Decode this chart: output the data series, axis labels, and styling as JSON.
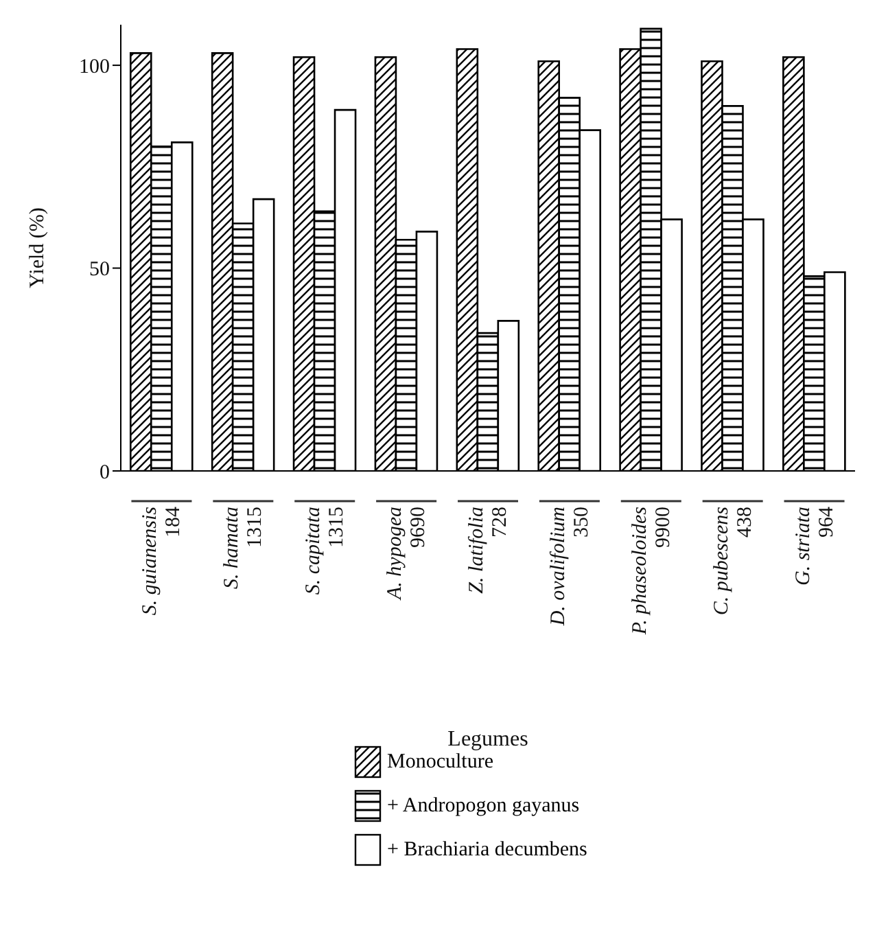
{
  "chart_data": {
    "type": "bar",
    "xlabel": "Legumes",
    "ylabel": "Yield (%)",
    "categories": [
      "S. guianensis\n184",
      "S. hamata\n1315",
      "S. capitata\n1315",
      "A. hypogea\n9690",
      "Z. latifolia\n728",
      "D. ovalifolium\n350",
      "P. phaseoloides\n9900",
      "C. pubescens\n438",
      "G. striata\n964"
    ],
    "series": [
      {
        "name": "Monoculture",
        "color": "#000000",
        "values": [
          103,
          103,
          102,
          102,
          104,
          101,
          104,
          101,
          102
        ]
      },
      {
        "name": "+ Andropogon gayanus",
        "color": "#000000",
        "values": [
          80,
          61,
          64,
          57,
          34,
          92,
          109,
          90,
          48
        ]
      },
      {
        "name": "+ Brachiaria decumbens",
        "color": "#ffffff",
        "values": [
          81,
          67,
          89,
          59,
          37,
          84,
          62,
          62,
          49
        ]
      }
    ],
    "ylim": [
      0,
      110
    ],
    "yticks": [
      0,
      50,
      100
    ],
    "grid": false,
    "legend": "bottom"
  }
}
